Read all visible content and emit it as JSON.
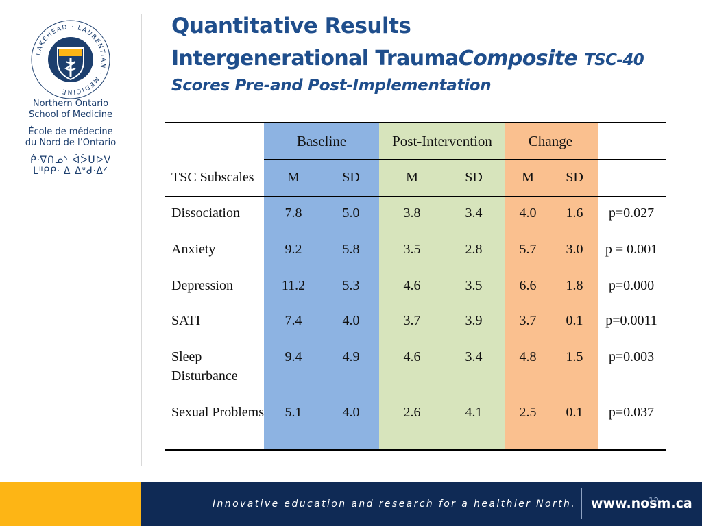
{
  "logo": {
    "name": "Lakehead · Laurentian Medicine crest",
    "ring_text": "LAKEHEAD · LAURENTIAN · MEDICINE"
  },
  "school": {
    "english": [
      "Northern Ontario",
      "School of Medicine"
    ],
    "french": [
      "École de médecine",
      "du Nord de l’Ontario"
    ],
    "syllabics": [
      "ᑮᐧᐁᑎᓄᐠ ᐋᐴᑌᐅᐯ",
      "ᒪᐦᑭᑭᐧ ᐃ ᐃᐡᑯᐧᐃᐟ"
    ]
  },
  "title": {
    "line1": "Quantitative Results",
    "line2_part1": "Intergenerational Trauma",
    "line2_part2": "Composite",
    "line2_part3": "TSC-40",
    "line3": "Scores Pre-and Post-Implementation"
  },
  "table": {
    "groups": [
      "Baseline",
      "Post-Intervention",
      "Change"
    ],
    "row_header": "TSC Subscales",
    "subheaders": [
      "M",
      "SD",
      "M",
      "SD",
      "M",
      "SD"
    ],
    "rows": [
      {
        "label": "Dissociation",
        "values": [
          "7.8",
          "5.0",
          "3.8",
          "3.4",
          "4.0",
          "1.6"
        ],
        "p": "p=0.027"
      },
      {
        "label": "Anxiety",
        "values": [
          "9.2",
          "5.8",
          "3.5",
          "2.8",
          "5.7",
          "3.0"
        ],
        "p": "p = 0.001"
      },
      {
        "label": "Depression",
        "values": [
          "11.2",
          "5.3",
          "4.6",
          "3.5",
          "6.6",
          "1.8"
        ],
        "p": "p=0.000"
      },
      {
        "label": "SATI",
        "values": [
          "7.4",
          "4.0",
          "3.7",
          "3.9",
          "3.7",
          "0.1"
        ],
        "p": "p=0.0011"
      },
      {
        "label": "Sleep Disturbance",
        "values": [
          "9.4",
          "4.9",
          "4.6",
          "3.4",
          "4.8",
          "1.5"
        ],
        "p": "p=0.003"
      },
      {
        "label": "Sexual Problems",
        "values": [
          "5.1",
          "4.0",
          "2.6",
          "4.1",
          "2.5",
          "0.1"
        ],
        "p": "p=0.037"
      }
    ],
    "colors": {
      "baseline": "#8db3e2",
      "post": "#d7e4bc",
      "change": "#fac08f"
    }
  },
  "footer": {
    "tagline": "Innovative education and research for a healthier North.",
    "url": "www.nosm.ca",
    "page": "12",
    "colors": {
      "bar": "#0f2a55",
      "accent": "#fdb515"
    }
  }
}
